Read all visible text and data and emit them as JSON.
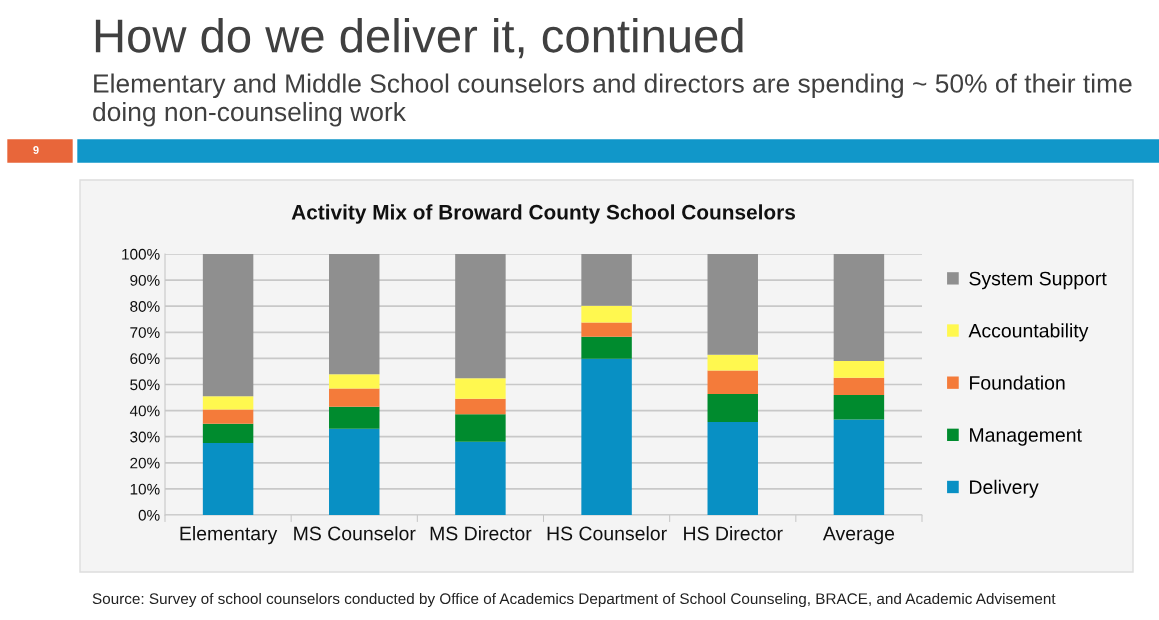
{
  "chart_data": {
    "type": "bar",
    "stacked": true,
    "title": "Activity Mix of Broward County School Counselors",
    "categories": [
      "Elementary",
      "MS Counselor",
      "MS Director",
      "HS Counselor",
      "HS Director",
      "Average"
    ],
    "series": [
      {
        "name": "Delivery",
        "color": "#0890c4",
        "values": [
          27.6,
          33.0,
          28.1,
          59.9,
          35.6,
          36.6
        ]
      },
      {
        "name": "Management",
        "color": "#008b2e",
        "values": [
          7.4,
          8.5,
          10.5,
          8.4,
          10.8,
          9.4
        ]
      },
      {
        "name": "Foundation",
        "color": "#f47b3a",
        "values": [
          5.4,
          7.0,
          5.9,
          5.5,
          9.0,
          6.6
        ]
      },
      {
        "name": "Accountability",
        "color": "#fff84f",
        "values": [
          5.1,
          5.4,
          7.9,
          6.4,
          6.0,
          6.4
        ]
      },
      {
        "name": "System Support",
        "color": "#8f8f8f",
        "values": [
          54.5,
          46.1,
          47.6,
          19.8,
          38.6,
          41.0
        ]
      }
    ],
    "ylim": [
      0,
      100
    ],
    "yticks": [
      {
        "value": 0,
        "label": "0%"
      },
      {
        "value": 10,
        "label": "10%"
      },
      {
        "value": 20,
        "label": "20%"
      },
      {
        "value": 30,
        "label": "30%"
      },
      {
        "value": 40,
        "label": "40%"
      },
      {
        "value": 50,
        "label": "50%"
      },
      {
        "value": 60,
        "label": "60%"
      },
      {
        "value": 70,
        "label": "70%"
      },
      {
        "value": 80,
        "label": "80%"
      },
      {
        "value": 90,
        "label": "90%"
      },
      {
        "value": 100,
        "label": "100%"
      }
    ],
    "grid": "y",
    "legend": "right",
    "annotations": [
      "How do we deliver it, continued",
      "Elementary and Middle School counselors and directors are spending ~ 50% of their time doing non-counseling work",
      "9",
      "Source: Survey of school counselors conducted by Office of Academics Department of School Counseling, BRACE, and Academic Advisement"
    ]
  }
}
